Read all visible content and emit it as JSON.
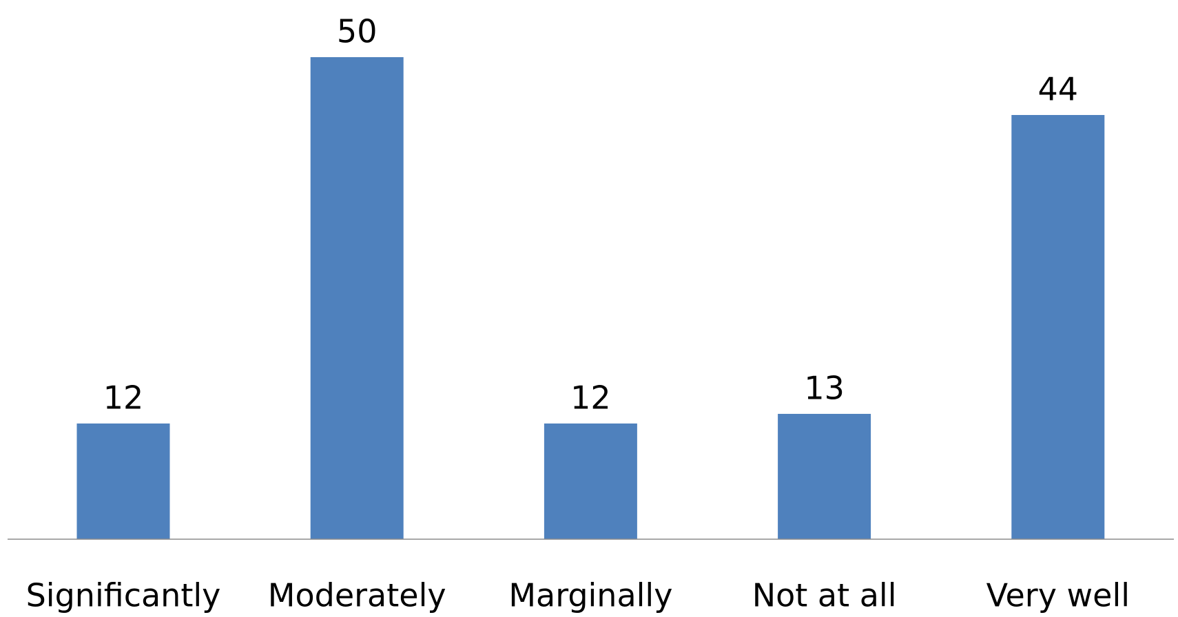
{
  "chart_data": {
    "type": "bar",
    "categories": [
      "Significantly",
      "Moderately",
      "Marginally",
      "Not at all",
      "Very well"
    ],
    "values": [
      12,
      50,
      12,
      13,
      44
    ],
    "color": "#4f81bd"
  }
}
